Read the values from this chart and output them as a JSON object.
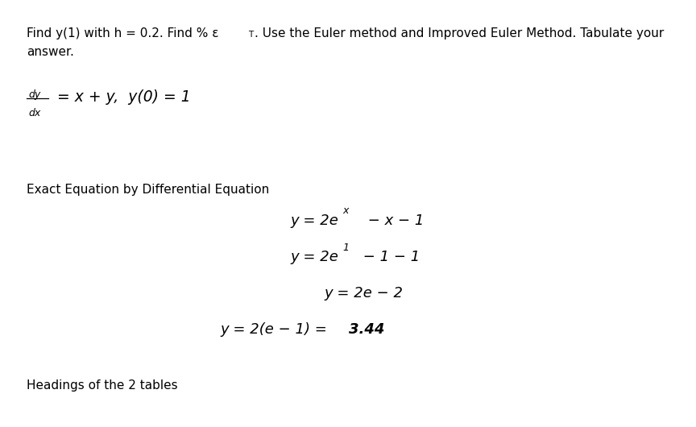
{
  "background_color": "#ffffff",
  "font_family": "DejaVu Sans",
  "text_color": "#000000",
  "title_part1": "Find y(1) with h = 0.2. Find % ε",
  "title_subscript": "T",
  "title_part2": ". Use the Euler method and Improved Euler Method. Tabulate your",
  "title_line2": "answer.",
  "section_label": "Exact Equation by Differential Equation",
  "footer": "Headings of the 2 tables"
}
